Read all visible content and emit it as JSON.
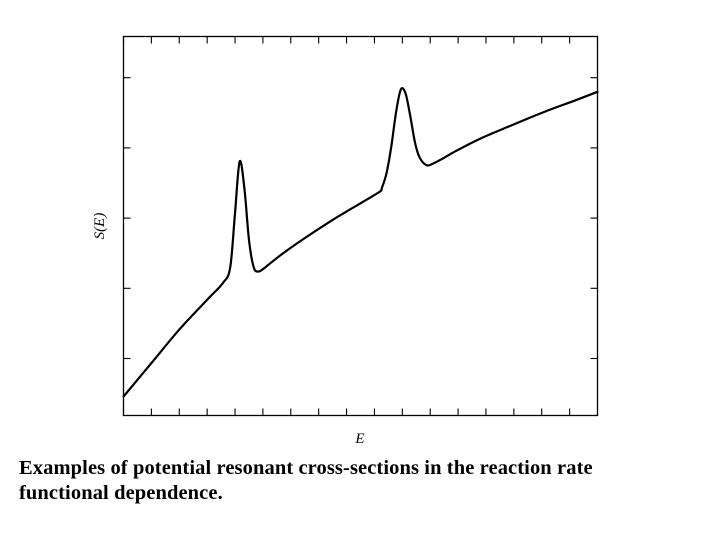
{
  "chart_data": {
    "type": "line",
    "title": "",
    "xlabel": "E",
    "ylabel": "S(E)",
    "xlim": [
      0,
      100
    ],
    "ylim": [
      0,
      100
    ],
    "x_ticks_shown_without_labels": 18,
    "y_ticks_shown_without_labels": 5,
    "grid": false,
    "legend": "none",
    "series": [
      {
        "x": [
          0,
          6,
          12,
          18,
          21,
          22.5,
          23.5,
          24.5,
          25.5,
          26.5,
          27.5,
          28.5,
          29.5,
          30.5,
          32,
          34,
          38,
          44,
          50,
          54,
          54.5,
          55.5,
          56.5,
          57.5,
          58.5,
          59.5,
          60.5,
          61.5,
          62.5,
          64,
          65.5,
          67.5,
          70,
          75,
          80,
          85,
          90,
          95,
          100
        ],
        "y": [
          5,
          14,
          23,
          31,
          35,
          39,
          53,
          67,
          60,
          46,
          39,
          38,
          38.7,
          39.7,
          41.2,
          43.1,
          46.6,
          51.5,
          56,
          59,
          60,
          64,
          71,
          80,
          86,
          85,
          79,
          72,
          68,
          66,
          66.6,
          67.9,
          69.7,
          72.9,
          75.6,
          78.2,
          80.7,
          83,
          85.4
        ]
      }
    ],
    "line_color": "#000000"
  },
  "caption": {
    "line1": "Examples of potential resonant cross-sections in the reaction rate",
    "line2": "functional dependence."
  }
}
